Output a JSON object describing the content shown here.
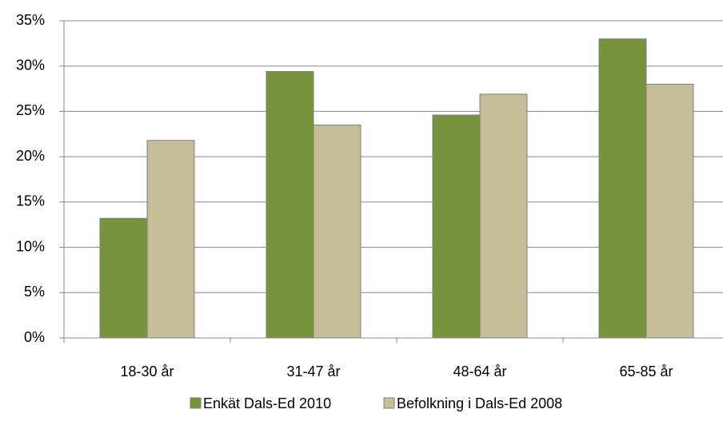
{
  "chart_data": {
    "type": "bar",
    "categories": [
      "18-30 år",
      "31-47 år",
      "48-64 år",
      "65-85 år"
    ],
    "series": [
      {
        "name": "Enkät Dals-Ed 2010",
        "color": "#77933c",
        "values": [
          13.2,
          29.4,
          24.6,
          33.0
        ]
      },
      {
        "name": "Befolkning i Dals-Ed 2008",
        "color": "#c4bd97",
        "values": [
          21.8,
          23.5,
          26.9,
          28.0
        ]
      }
    ],
    "ylim": [
      0,
      35
    ],
    "yticks": [
      {
        "value": 0,
        "label": "0%"
      },
      {
        "value": 5,
        "label": "5%"
      },
      {
        "value": 10,
        "label": "10%"
      },
      {
        "value": 15,
        "label": "15%"
      },
      {
        "value": 20,
        "label": "20%"
      },
      {
        "value": 25,
        "label": "25%"
      },
      {
        "value": 30,
        "label": "30%"
      },
      {
        "value": 35,
        "label": "35%"
      }
    ],
    "grid": true,
    "legend": "bottom"
  }
}
